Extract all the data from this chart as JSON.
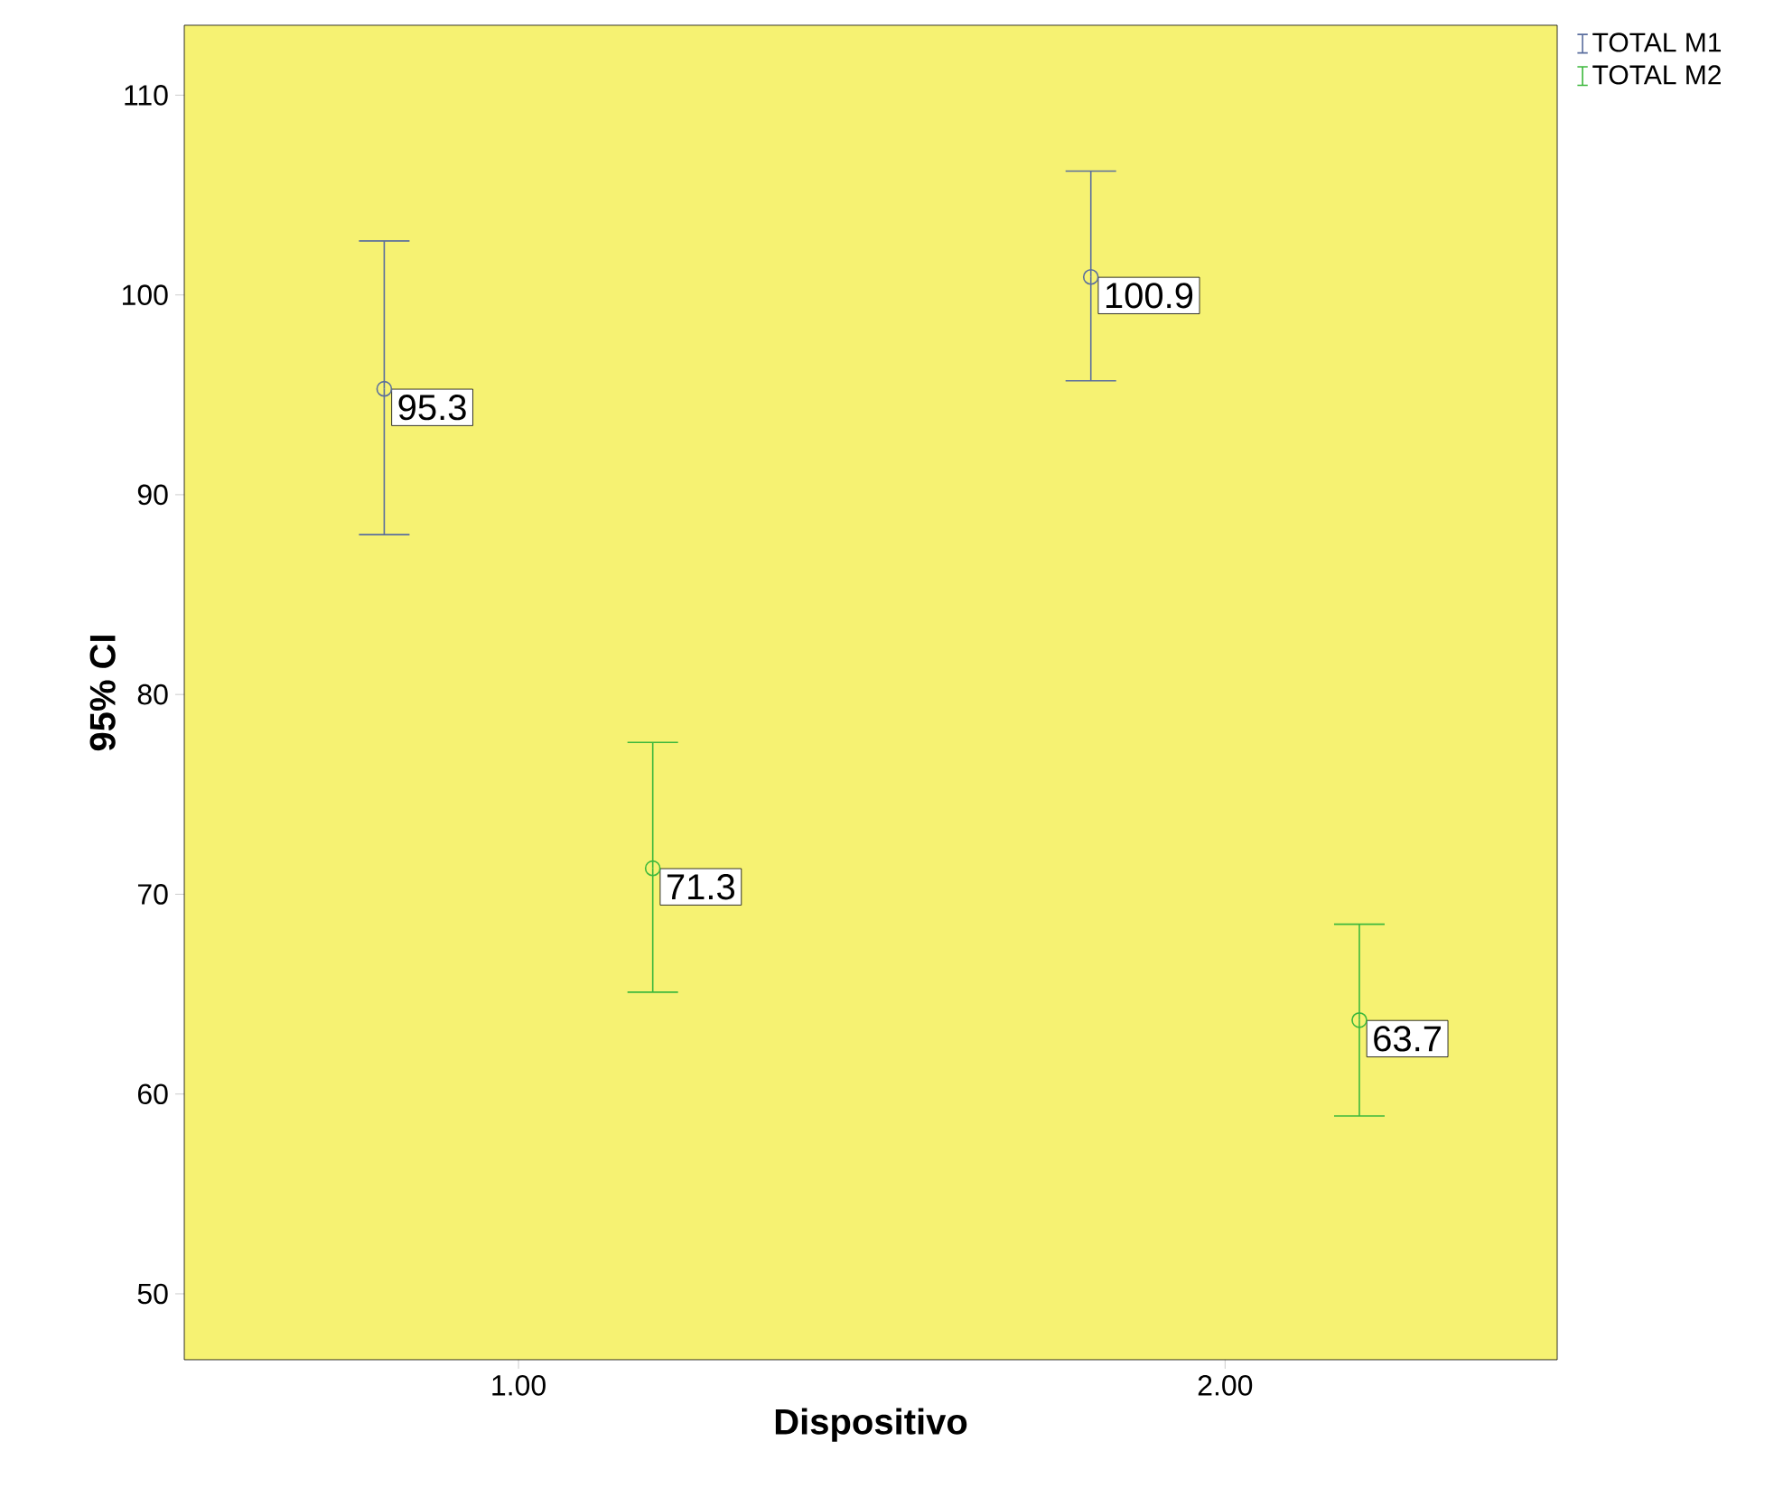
{
  "chart_data": {
    "type": "scatter",
    "xlabel": "Dispositivo",
    "ylabel": "95% CI",
    "categories": [
      "1.00",
      "2.00"
    ],
    "series": [
      {
        "name": "TOTAL M1",
        "color": "#5a6e9e",
        "values": [
          95.3,
          100.9
        ],
        "errors": [
          [
            88.0,
            102.7
          ],
          [
            95.7,
            106.2
          ]
        ]
      },
      {
        "name": "TOTAL M2",
        "color": "#3cb83c",
        "values": [
          71.3,
          63.7
        ],
        "errors": [
          [
            65.1,
            77.6
          ],
          [
            58.9,
            68.5
          ]
        ]
      }
    ],
    "ylim": [
      46.7,
      113.5
    ],
    "yticks": [
      50,
      60,
      70,
      80,
      90,
      100,
      110
    ],
    "marker": "circle",
    "data_labels": true,
    "legend": "top right",
    "grid": false
  }
}
